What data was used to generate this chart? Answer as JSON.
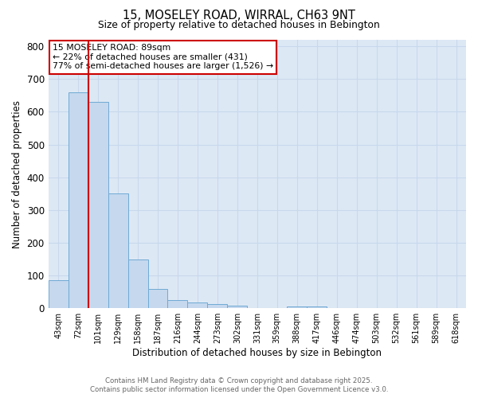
{
  "title_line1": "15, MOSELEY ROAD, WIRRAL, CH63 9NT",
  "title_line2": "Size of property relative to detached houses in Bebington",
  "xlabel": "Distribution of detached houses by size in Bebington",
  "ylabel": "Number of detached properties",
  "categories": [
    "43sqm",
    "72sqm",
    "101sqm",
    "129sqm",
    "158sqm",
    "187sqm",
    "216sqm",
    "244sqm",
    "273sqm",
    "302sqm",
    "331sqm",
    "359sqm",
    "388sqm",
    "417sqm",
    "446sqm",
    "474sqm",
    "503sqm",
    "532sqm",
    "561sqm",
    "589sqm",
    "618sqm"
  ],
  "values": [
    85,
    660,
    630,
    350,
    150,
    60,
    25,
    18,
    12,
    7,
    0,
    0,
    6,
    5,
    0,
    0,
    0,
    0,
    0,
    0,
    0
  ],
  "bar_color": "#c5d8ee",
  "bar_edge_color": "#6faad4",
  "red_line_index": 2,
  "annotation_text": "15 MOSELEY ROAD: 89sqm\n← 22% of detached houses are smaller (431)\n77% of semi-detached houses are larger (1,526) →",
  "annotation_box_color": "#ffffff",
  "annotation_box_edge_color": "#cc0000",
  "red_line_color": "#cc0000",
  "ylim": [
    0,
    820
  ],
  "yticks": [
    0,
    100,
    200,
    300,
    400,
    500,
    600,
    700,
    800
  ],
  "grid_color": "#c8d8ec",
  "background_color": "#dde8f5",
  "footer_line1": "Contains HM Land Registry data © Crown copyright and database right 2025.",
  "footer_line2": "Contains public sector information licensed under the Open Government Licence v3.0."
}
